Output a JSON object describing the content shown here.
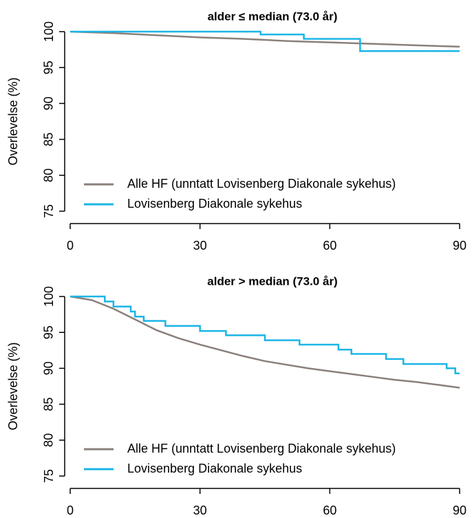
{
  "chart_data": [
    {
      "type": "line",
      "title": "alder ≤ median (73.0 år)",
      "ylabel": "Overlevelse (%)",
      "xlim": [
        0,
        90
      ],
      "xticks": [
        0,
        30,
        60,
        90
      ],
      "ylim": [
        75,
        100
      ],
      "yticks": [
        75,
        80,
        85,
        90,
        95,
        100
      ],
      "legend": "bottom-left",
      "series": [
        {
          "name": "Alle HF (unntatt Lovisenberg Diakonale sykehus)",
          "color": "#8a7f7a",
          "step": false,
          "x": [
            0,
            10,
            20,
            30,
            40,
            50,
            60,
            70,
            80,
            90
          ],
          "values": [
            100,
            99.8,
            99.5,
            99.2,
            99.0,
            98.7,
            98.5,
            98.3,
            98.1,
            97.9
          ]
        },
        {
          "name": "Lovisenberg Diakonale sykehus",
          "color": "#1ab5e6",
          "step": true,
          "x": [
            0,
            44,
            54,
            67,
            90
          ],
          "values": [
            100,
            99.6,
            99.0,
            97.3,
            97.3
          ]
        }
      ]
    },
    {
      "type": "line",
      "title": "alder > median (73.0 år)",
      "ylabel": "Overlevelse (%)",
      "xlim": [
        0,
        90
      ],
      "xticks": [
        0,
        30,
        60,
        90
      ],
      "ylim": [
        75,
        100
      ],
      "yticks": [
        75,
        80,
        85,
        90,
        95,
        100
      ],
      "legend": "bottom-left",
      "series": [
        {
          "name": "Alle HF (unntatt Lovisenberg Diakonale sykehus)",
          "color": "#8a7f7a",
          "step": false,
          "x": [
            0,
            5,
            10,
            15,
            20,
            25,
            30,
            35,
            40,
            45,
            50,
            55,
            60,
            65,
            70,
            75,
            80,
            85,
            90
          ],
          "values": [
            100,
            99.5,
            98.3,
            96.8,
            95.3,
            94.2,
            93.3,
            92.5,
            91.7,
            91.0,
            90.5,
            90.0,
            89.6,
            89.2,
            88.8,
            88.4,
            88.1,
            87.7,
            87.3
          ]
        },
        {
          "name": "Lovisenberg Diakonale sykehus",
          "color": "#1ab5e6",
          "step": true,
          "x": [
            0,
            8,
            10,
            14,
            15,
            17,
            22,
            30,
            36,
            45,
            53,
            62,
            65,
            73,
            77,
            87,
            89,
            90
          ],
          "values": [
            100,
            99.3,
            98.6,
            97.9,
            97.2,
            96.6,
            95.9,
            95.2,
            94.6,
            93.9,
            93.3,
            92.6,
            92.0,
            91.3,
            90.6,
            90.0,
            89.3,
            89.3
          ]
        }
      ]
    }
  ]
}
